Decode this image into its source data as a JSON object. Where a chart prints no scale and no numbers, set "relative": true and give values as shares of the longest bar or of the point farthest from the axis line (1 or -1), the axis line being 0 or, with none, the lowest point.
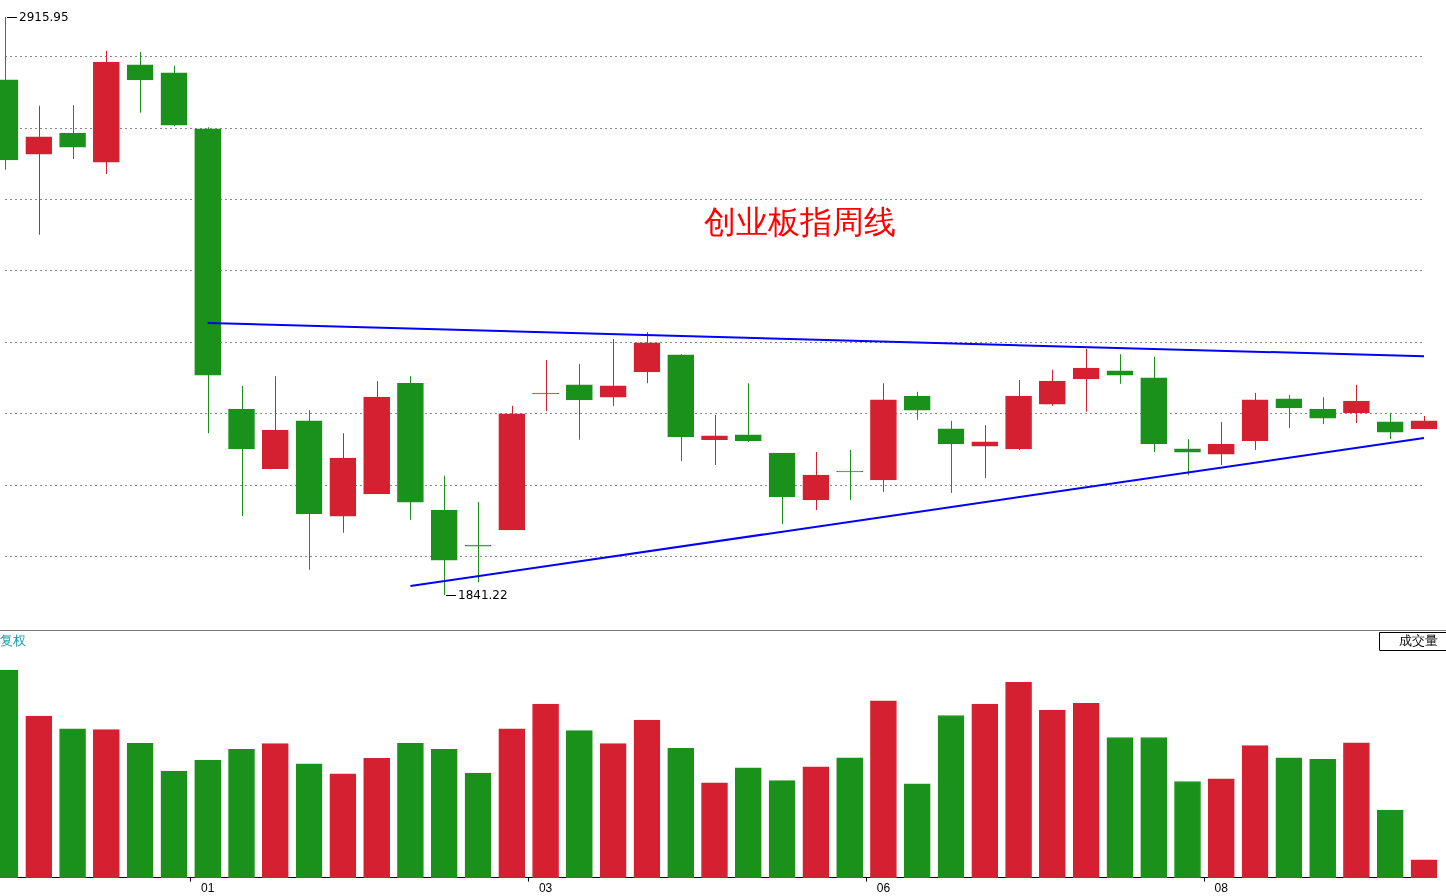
{
  "chart_data": [
    {
      "type": "candlestick",
      "title": "创业板指周线",
      "categories": [
        null,
        null,
        null,
        null,
        null,
        null,
        "01",
        null,
        null,
        null,
        null,
        null,
        null,
        null,
        null,
        null,
        "03",
        null,
        null,
        null,
        null,
        null,
        null,
        null,
        null,
        null,
        "06",
        null,
        null,
        null,
        null,
        null,
        null,
        null,
        null,
        null,
        "08",
        null,
        null,
        null,
        null,
        null,
        null
      ],
      "ohlc": [
        [
          2799,
          2915.95,
          2632,
          2650
        ],
        [
          2661,
          2751,
          2511,
          2693
        ],
        [
          2700,
          2752,
          2652,
          2674
        ],
        [
          2646,
          2853,
          2624,
          2832
        ],
        [
          2827,
          2851,
          2738,
          2799
        ],
        [
          2812,
          2825,
          2713,
          2715
        ],
        [
          2708,
          2711,
          2142,
          2250
        ],
        [
          2187,
          2230,
          1988,
          2113
        ],
        [
          2076,
          2248,
          2076,
          2148
        ],
        [
          2165,
          2185,
          1888,
          1992
        ],
        [
          1988,
          2142,
          1957,
          2096
        ],
        [
          2029,
          2239,
          2029,
          2209
        ],
        [
          2235,
          2248,
          1981,
          2014
        ],
        [
          1999,
          2063,
          1841.22,
          1906
        ],
        [
          1932,
          2014,
          1865,
          1932
        ],
        [
          1962,
          2193,
          1962,
          2178
        ],
        [
          2215,
          2278,
          2183,
          2215
        ],
        [
          2232,
          2271,
          2130,
          2204
        ],
        [
          2209,
          2317,
          2193,
          2230
        ],
        [
          2256,
          2330,
          2235,
          2310
        ],
        [
          2288,
          2289,
          2090,
          2135
        ],
        [
          2130,
          2176,
          2083,
          2137
        ],
        [
          2139,
          2235,
          2126,
          2128
        ],
        [
          2105,
          2105,
          1973,
          2024
        ],
        [
          2018,
          2107,
          1999,
          2064
        ],
        [
          2070,
          2111,
          2018,
          2070
        ],
        [
          2055,
          2235,
          2033,
          2204
        ],
        [
          2211,
          2219,
          2167,
          2185
        ],
        [
          2150,
          2165,
          2031,
          2122
        ],
        [
          2118,
          2157,
          2059,
          2126
        ],
        [
          2113,
          2241,
          2111,
          2211
        ],
        [
          2196,
          2260,
          2193,
          2239
        ],
        [
          2243,
          2299,
          2182,
          2263
        ],
        [
          2258,
          2289,
          2234,
          2250
        ],
        [
          2245,
          2284,
          2107,
          2122
        ],
        [
          2113,
          2131,
          2064,
          2107
        ],
        [
          2103,
          2163,
          2083,
          2122
        ],
        [
          2128,
          2217,
          2111,
          2204
        ],
        [
          2206,
          2213,
          2152,
          2189
        ],
        [
          2187,
          2209,
          2159,
          2170
        ],
        [
          2180,
          2232,
          2161,
          2202
        ],
        [
          2163,
          2180,
          2131,
          2144
        ],
        [
          2150,
          2174,
          2150,
          2165
        ]
      ],
      "colors": [
        "#1a911a",
        "#d42030",
        "#1a911a",
        "#d42030",
        "#1a911a",
        "#1a911a",
        "#1a911a",
        "#1a911a",
        "#d42030",
        "#1a911a",
        "#d42030",
        "#d42030",
        "#1a911a",
        "#1a911a",
        "#1a911a",
        "#d42030",
        "#d42030",
        "#1a911a",
        "#d42030",
        "#d42030",
        "#1a911a",
        "#d42030",
        "#1a911a",
        "#1a911a",
        "#d42030",
        "#1a911a",
        "#d42030",
        "#1a911a",
        "#1a911a",
        "#d42030",
        "#d42030",
        "#d42030",
        "#d42030",
        "#1a911a",
        "#1a911a",
        "#1a911a",
        "#d42030",
        "#d42030",
        "#1a911a",
        "#1a911a",
        "#d42030",
        "#1a911a",
        "#d42030"
      ],
      "series": [
        {
          "type": "line",
          "color": "#0000ff",
          "values": [
            null,
            null,
            null,
            null,
            null,
            null,
            2347,
            null,
            null,
            null,
            null,
            null,
            null,
            null,
            null,
            null,
            null,
            null,
            null,
            null,
            null,
            null,
            null,
            null,
            null,
            null,
            null,
            null,
            null,
            null,
            null,
            null,
            null,
            null,
            null,
            null,
            null,
            null,
            null,
            null,
            null,
            null,
            2285
          ]
        },
        {
          "type": "line",
          "color": "#0000ff",
          "values": [
            null,
            null,
            null,
            null,
            null,
            null,
            null,
            null,
            null,
            null,
            null,
            null,
            1858,
            null,
            null,
            null,
            null,
            null,
            null,
            null,
            null,
            null,
            null,
            null,
            null,
            null,
            null,
            null,
            null,
            null,
            null,
            null,
            null,
            null,
            null,
            null,
            null,
            null,
            null,
            null,
            null,
            null,
            2133
          ]
        }
      ],
      "yticks": [
        {
          "value": 2842,
          "label": null
        },
        {
          "value": 2708,
          "label": null
        },
        {
          "value": 2576,
          "label": null
        },
        {
          "value": 2444,
          "label": null
        },
        {
          "value": 2310,
          "label": null
        },
        {
          "value": 2178,
          "label": null
        },
        {
          "value": 2044,
          "label": null
        },
        {
          "value": 1912,
          "label": null
        }
      ],
      "grid": "y",
      "legend": false,
      "tick_labels": false,
      "annotations": [
        "2915.95",
        "1841.22"
      ]
    },
    {
      "type": "bar",
      "relative": true,
      "ylabel": "成交量",
      "annotations": [
        "复权"
      ],
      "categories": [
        null,
        null,
        null,
        null,
        null,
        null,
        "01",
        null,
        null,
        null,
        null,
        null,
        null,
        null,
        null,
        null,
        "03",
        null,
        null,
        null,
        null,
        null,
        null,
        null,
        null,
        null,
        "06",
        null,
        null,
        null,
        null,
        null,
        null,
        null,
        null,
        null,
        "08",
        null,
        null,
        null,
        null,
        null,
        null
      ],
      "values": [
        1.0,
        0.778,
        0.717,
        0.713,
        0.647,
        0.513,
        0.566,
        0.618,
        0.645,
        0.548,
        0.5,
        0.575,
        0.647,
        0.618,
        0.504,
        0.717,
        0.836,
        0.708,
        0.645,
        0.759,
        0.623,
        0.456,
        0.529,
        0.467,
        0.533,
        0.577,
        0.851,
        0.452,
        0.781,
        0.836,
        0.941,
        0.807,
        0.84,
        0.675,
        0.675,
        0.463,
        0.476,
        0.636,
        0.577,
        0.57,
        0.649,
        0.325,
        0.086
      ],
      "colors": [
        "#1a911a",
        "#d42030",
        "#1a911a",
        "#d42030",
        "#1a911a",
        "#1a911a",
        "#1a911a",
        "#1a911a",
        "#d42030",
        "#1a911a",
        "#d42030",
        "#d42030",
        "#1a911a",
        "#1a911a",
        "#1a911a",
        "#d42030",
        "#d42030",
        "#1a911a",
        "#d42030",
        "#d42030",
        "#1a911a",
        "#d42030",
        "#1a911a",
        "#1a911a",
        "#d42030",
        "#1a911a",
        "#d42030",
        "#1a911a",
        "#1a911a",
        "#d42030",
        "#d42030",
        "#d42030",
        "#d42030",
        "#1a911a",
        "#1a911a",
        "#1a911a",
        "#d42030",
        "#d42030",
        "#1a911a",
        "#1a911a",
        "#d42030",
        "#1a911a",
        "#d42030"
      ],
      "legend": false,
      "tick_labels": "x"
    }
  ]
}
